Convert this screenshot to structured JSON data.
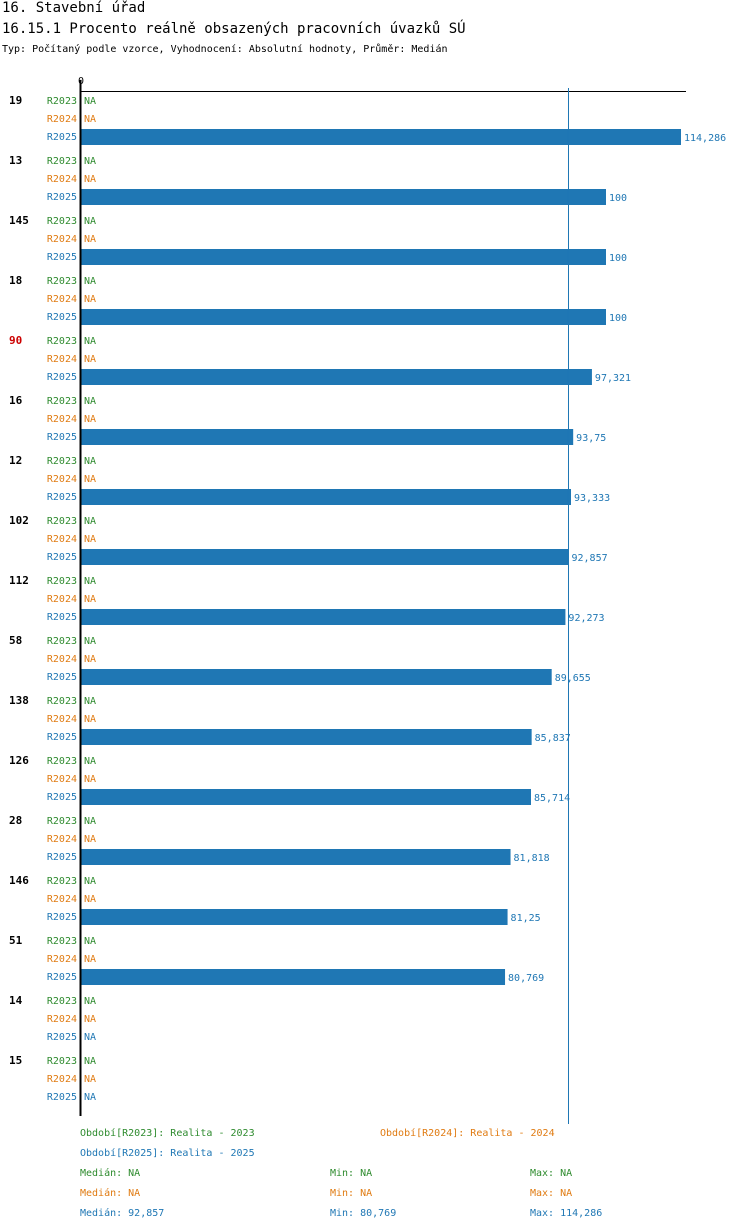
{
  "header": {
    "section": "16. Stavební úřad",
    "title": "16.15.1 Procento reálně obsazených pracovních úvazků SÚ",
    "subtitle": "Typ: Počítaný podle vzorce, Vyhodnocení: Absolutní hodnoty, Průměr: Medián"
  },
  "colors": {
    "r2023": "#2e8b2e",
    "r2024": "#e07b12",
    "r2025": "#1f77b4",
    "highlight": "#cc0000",
    "text": "#000000"
  },
  "chart_data": {
    "type": "bar",
    "orientation": "horizontal",
    "axis_zero_label": "0",
    "xlim": [
      0,
      114.286
    ],
    "median_line": 92.857,
    "series_names": [
      "R2023",
      "R2024",
      "R2025"
    ],
    "na_label": "NA",
    "groups": [
      {
        "id": "19",
        "highlight": false,
        "values": [
          null,
          null,
          114.286
        ],
        "labels": [
          "NA",
          "NA",
          "114,286"
        ]
      },
      {
        "id": "13",
        "highlight": false,
        "values": [
          null,
          null,
          100
        ],
        "labels": [
          "NA",
          "NA",
          "100"
        ]
      },
      {
        "id": "145",
        "highlight": false,
        "values": [
          null,
          null,
          100
        ],
        "labels": [
          "NA",
          "NA",
          "100"
        ]
      },
      {
        "id": "18",
        "highlight": false,
        "values": [
          null,
          null,
          100
        ],
        "labels": [
          "NA",
          "NA",
          "100"
        ]
      },
      {
        "id": "90",
        "highlight": true,
        "values": [
          null,
          null,
          97.321
        ],
        "labels": [
          "NA",
          "NA",
          "97,321"
        ]
      },
      {
        "id": "16",
        "highlight": false,
        "values": [
          null,
          null,
          93.75
        ],
        "labels": [
          "NA",
          "NA",
          "93,75"
        ]
      },
      {
        "id": "12",
        "highlight": false,
        "values": [
          null,
          null,
          93.333
        ],
        "labels": [
          "NA",
          "NA",
          "93,333"
        ]
      },
      {
        "id": "102",
        "highlight": false,
        "values": [
          null,
          null,
          92.857
        ],
        "labels": [
          "NA",
          "NA",
          "92,857"
        ]
      },
      {
        "id": "112",
        "highlight": false,
        "values": [
          null,
          null,
          92.273
        ],
        "labels": [
          "NA",
          "NA",
          "92,273"
        ]
      },
      {
        "id": "58",
        "highlight": false,
        "values": [
          null,
          null,
          89.655
        ],
        "labels": [
          "NA",
          "NA",
          "89,655"
        ]
      },
      {
        "id": "138",
        "highlight": false,
        "values": [
          null,
          null,
          85.837
        ],
        "labels": [
          "NA",
          "NA",
          "85,837"
        ]
      },
      {
        "id": "126",
        "highlight": false,
        "values": [
          null,
          null,
          85.714
        ],
        "labels": [
          "NA",
          "NA",
          "85,714"
        ]
      },
      {
        "id": "28",
        "highlight": false,
        "values": [
          null,
          null,
          81.818
        ],
        "labels": [
          "NA",
          "NA",
          "81,818"
        ]
      },
      {
        "id": "146",
        "highlight": false,
        "values": [
          null,
          null,
          81.25
        ],
        "labels": [
          "NA",
          "NA",
          "81,25"
        ]
      },
      {
        "id": "51",
        "highlight": false,
        "values": [
          null,
          null,
          80.769
        ],
        "labels": [
          "NA",
          "NA",
          "80,769"
        ]
      },
      {
        "id": "14",
        "highlight": false,
        "values": [
          null,
          null,
          null
        ],
        "labels": [
          "NA",
          "NA",
          "NA"
        ]
      },
      {
        "id": "15",
        "highlight": false,
        "values": [
          null,
          null,
          null
        ],
        "labels": [
          "NA",
          "NA",
          "NA"
        ]
      }
    ]
  },
  "legend": {
    "r2023": "Období[R2023]: Realita - 2023",
    "r2024": "Období[R2024]: Realita - 2024",
    "r2025": "Období[R2025]: Realita - 2025"
  },
  "stats": {
    "r2023": {
      "median": "Medián: NA",
      "min": "Min: NA",
      "max": "Max: NA"
    },
    "r2024": {
      "median": "Medián: NA",
      "min": "Min: NA",
      "max": "Max: NA"
    },
    "r2025": {
      "median": "Medián: 92,857",
      "min": "Min: 80,769",
      "max": "Max: 114,286"
    }
  }
}
